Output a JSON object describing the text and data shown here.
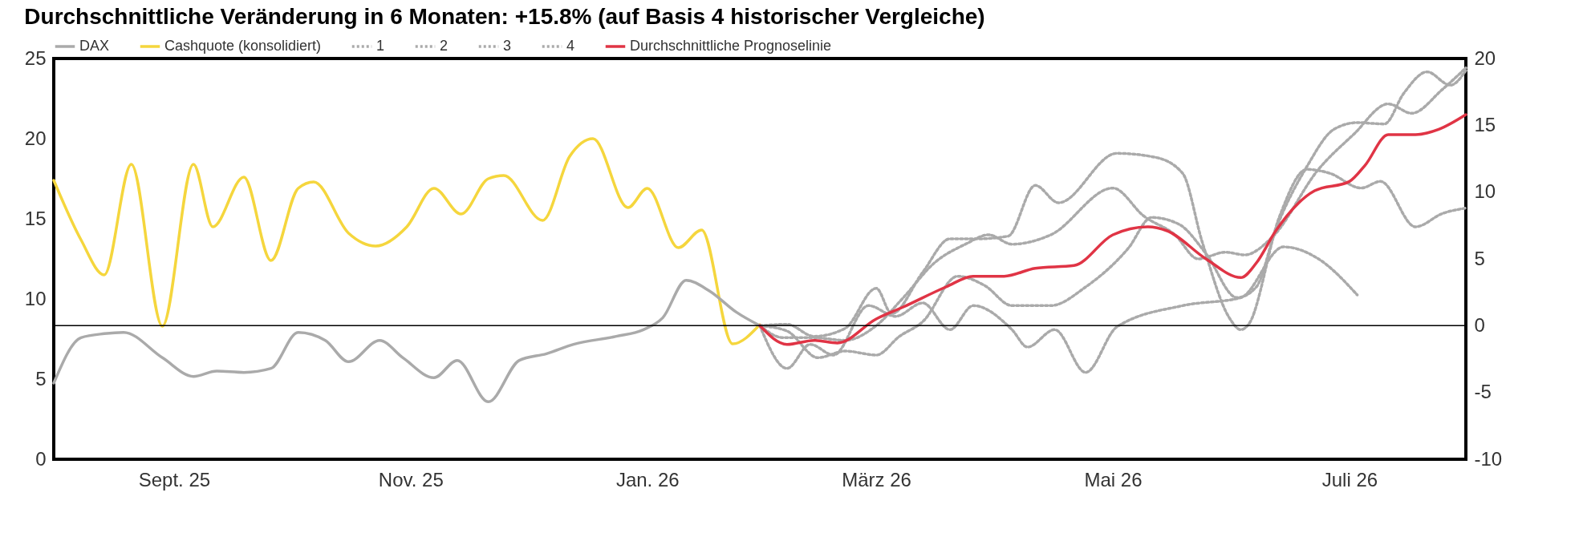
{
  "chart_data": {
    "type": "line",
    "title": "Durchschnittliche Veränderung in 6 Monaten: +15.8% (auf Basis 4 historischer Vergleiche)",
    "xlim": [
      "2025-08-01",
      "2026-07-31"
    ],
    "xticks": [
      {
        "value": "2025-09-01",
        "label": "Sept. 25"
      },
      {
        "value": "2025-11-01",
        "label": "Nov. 25"
      },
      {
        "value": "2026-01-01",
        "label": "Jan. 26"
      },
      {
        "value": "2026-03-01",
        "label": "März 26"
      },
      {
        "value": "2026-05-01",
        "label": "Mai 26"
      },
      {
        "value": "2026-07-01",
        "label": "Juli 26"
      }
    ],
    "ylim": [
      0,
      25
    ],
    "yticks": [
      0,
      5,
      10,
      15,
      20,
      25
    ],
    "y2lim": [
      -10,
      20
    ],
    "y2ticks": [
      -10,
      -5,
      0,
      5,
      10,
      15,
      20
    ],
    "grid": false,
    "legend": "top left",
    "ref_lines": [
      {
        "axis": "y2",
        "value": 0,
        "color": "#000000"
      }
    ],
    "series": [
      {
        "name": "DAX",
        "color": "#aaaaaa",
        "axis": "y2",
        "x": [
          "2025-08-01",
          "2025-08-08",
          "2025-08-14",
          "2025-08-19",
          "2025-08-29",
          "2025-09-06",
          "2025-09-12",
          "2025-09-19",
          "2025-09-26",
          "2025-10-03",
          "2025-10-10",
          "2025-10-16",
          "2025-10-24",
          "2025-10-30",
          "2025-11-07",
          "2025-11-13",
          "2025-11-21",
          "2025-11-29",
          "2025-12-06",
          "2025-12-13",
          "2025-12-24",
          "2025-12-31",
          "2026-01-05",
          "2026-01-11",
          "2026-01-17",
          "2026-01-24",
          "2026-01-30"
        ],
        "values": [
          -4.3,
          -0.9,
          -0.6,
          -0.5,
          -2.4,
          -3.8,
          -3.4,
          -3.5,
          -3.2,
          -0.5,
          -1.1,
          -2.7,
          -1.1,
          -2.4,
          -3.9,
          -2.6,
          -5.7,
          -2.6,
          -2.1,
          -1.4,
          -0.8,
          -0.3,
          0.6,
          3.4,
          2.6,
          1.0,
          0
        ]
      },
      {
        "name": "Cashquote (konsolidiert)",
        "color": "#f5d63d",
        "x": [
          "2025-08-01",
          "2025-08-08",
          "2025-08-14",
          "2025-08-21",
          "2025-08-29",
          "2025-09-06",
          "2025-09-11",
          "2025-09-19",
          "2025-09-26",
          "2025-10-03",
          "2025-10-07",
          "2025-10-16",
          "2025-10-23",
          "2025-10-31",
          "2025-11-07",
          "2025-11-14",
          "2025-11-21",
          "2025-11-25",
          "2025-12-05",
          "2025-12-12",
          "2025-12-18",
          "2025-12-27",
          "2026-01-01",
          "2026-01-09",
          "2026-01-15",
          "2026-01-23",
          "2026-01-30"
        ],
        "values": [
          17.4,
          13.7,
          11.5,
          18.4,
          8.3,
          18.4,
          14.5,
          17.6,
          12.4,
          16.9,
          17.3,
          14.1,
          13.3,
          14.5,
          16.9,
          15.3,
          17.5,
          17.7,
          14.9,
          18.9,
          20.0,
          15.7,
          16.9,
          13.2,
          14.3,
          7.2,
          8.4
        ]
      },
      {
        "name": "1",
        "color": "#aaaaaa",
        "axis": "y2",
        "line_style": "dotted",
        "x": [
          "2026-01-30",
          "2026-02-06",
          "2026-02-12",
          "2026-02-18",
          "2026-02-27",
          "2026-03-06",
          "2026-03-13",
          "2026-03-20",
          "2026-03-26",
          "2026-04-05",
          "2026-04-09",
          "2026-04-16",
          "2026-04-24",
          "2026-05-02",
          "2026-05-19",
          "2026-06-03",
          "2026-06-14",
          "2026-06-23",
          "2026-07-03"
        ],
        "values": [
          0,
          -3.2,
          -1.4,
          -2.2,
          1.5,
          0.7,
          1.7,
          -0.3,
          1.5,
          -0.3,
          -1.6,
          -0.3,
          -3.5,
          -0.1,
          1.5,
          2.1,
          5.9,
          5.0,
          2.3
        ]
      },
      {
        "name": "2",
        "color": "#aaaaaa",
        "axis": "y2",
        "line_style": "dotted",
        "x": [
          "2026-01-30",
          "2026-02-06",
          "2026-02-13",
          "2026-02-21",
          "2026-03-01",
          "2026-03-05",
          "2026-03-13",
          "2026-03-20",
          "2026-03-27",
          "2026-04-04",
          "2026-04-11",
          "2026-04-17",
          "2026-05-02",
          "2026-05-12",
          "2026-05-19",
          "2026-05-24",
          "2026-05-31",
          "2026-06-03",
          "2026-06-05",
          "2026-06-13",
          "2026-06-20",
          "2026-06-26",
          "2026-07-04",
          "2026-07-09",
          "2026-07-18",
          "2026-07-25",
          "2026-07-31"
        ],
        "values": [
          0,
          0.1,
          -0.8,
          -0.2,
          2.8,
          0.9,
          4.0,
          6.5,
          6.5,
          6.7,
          10.5,
          9.2,
          12.9,
          12.6,
          11.4,
          6.3,
          0.6,
          -0.3,
          0.1,
          8.2,
          11.7,
          11.4,
          10.3,
          10.8,
          7.4,
          8.4,
          8.8
        ]
      },
      {
        "name": "3",
        "color": "#aaaaaa",
        "axis": "y2",
        "line_style": "dotted",
        "x": [
          "2026-01-30",
          "2026-02-05",
          "2026-02-13",
          "2026-02-21",
          "2026-03-01",
          "2026-03-08",
          "2026-03-16",
          "2026-03-24",
          "2026-03-30",
          "2026-04-05",
          "2026-04-15",
          "2026-05-01",
          "2026-05-09",
          "2026-05-17",
          "2026-05-23",
          "2026-05-30",
          "2026-06-04",
          "2026-06-11",
          "2026-06-23",
          "2026-07-02",
          "2026-07-11",
          "2026-07-17",
          "2026-07-25",
          "2026-07-31"
        ],
        "values": [
          0,
          -0.9,
          -0.9,
          -1.1,
          0,
          2.1,
          4.7,
          6.1,
          6.8,
          6.1,
          6.8,
          10.3,
          8.2,
          6.8,
          5.0,
          5.5,
          5.3,
          6.6,
          11.7,
          14.3,
          16.6,
          15.9,
          17.7,
          19.3
        ]
      },
      {
        "name": "4",
        "color": "#aaaaaa",
        "axis": "y2",
        "line_style": "dotted",
        "x": [
          "2026-01-30",
          "2026-02-06",
          "2026-02-14",
          "2026-02-21",
          "2026-03-01",
          "2026-03-07",
          "2026-03-13",
          "2026-03-22",
          "2026-03-29",
          "2026-04-05",
          "2026-04-15",
          "2026-04-24",
          "2026-05-05",
          "2026-05-11",
          "2026-05-18",
          "2026-05-25",
          "2026-06-02",
          "2026-06-07",
          "2026-06-12",
          "2026-06-20",
          "2026-06-27",
          "2026-07-03",
          "2026-07-10",
          "2026-07-15",
          "2026-07-21",
          "2026-07-27",
          "2026-07-31"
        ],
        "values": [
          0,
          -0.4,
          -2.4,
          -1.9,
          -2.2,
          -0.8,
          0.3,
          3.7,
          3.0,
          1.5,
          1.5,
          2.9,
          5.8,
          8.1,
          7.6,
          5.4,
          2.1,
          2.9,
          7.2,
          11.9,
          14.7,
          15.2,
          15.1,
          17.4,
          19.0,
          18.0,
          19.1
        ]
      },
      {
        "name": "Durchschnittliche Prognoselinie",
        "color": "#e03445",
        "axis": "y2",
        "x": [
          "2026-01-30",
          "2026-02-06",
          "2026-02-13",
          "2026-02-19",
          "2026-03-01",
          "2026-03-08",
          "2026-03-19",
          "2026-03-26",
          "2026-04-03",
          "2026-04-11",
          "2026-04-21",
          "2026-05-01",
          "2026-05-10",
          "2026-05-15",
          "2026-05-25",
          "2026-06-03",
          "2026-06-07",
          "2026-06-12",
          "2026-06-22",
          "2026-07-01",
          "2026-07-05",
          "2026-07-11",
          "2026-07-18",
          "2026-07-24",
          "2026-07-31"
        ],
        "values": [
          0,
          -1.4,
          -1.1,
          -1.3,
          0.5,
          1.4,
          2.9,
          3.7,
          3.7,
          4.3,
          4.5,
          6.8,
          7.4,
          7.1,
          5.0,
          3.6,
          4.7,
          7.1,
          10.1,
          10.8,
          12.0,
          14.3,
          14.3,
          14.7,
          15.8
        ]
      }
    ]
  }
}
